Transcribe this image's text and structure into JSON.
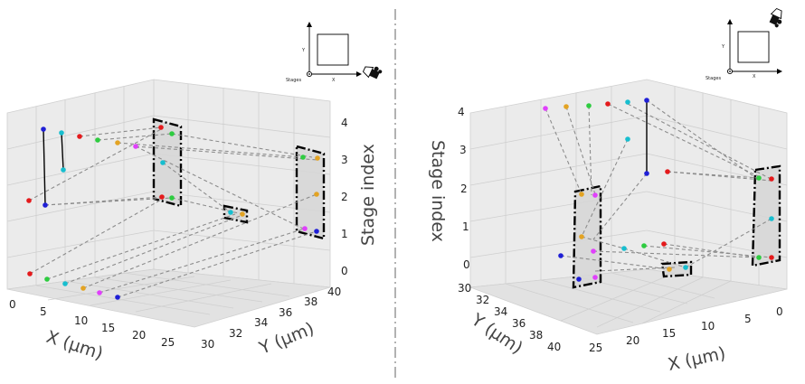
{
  "left_plot": {
    "x_ticks": [
      "0",
      "5",
      "10",
      "15",
      "20",
      "25"
    ],
    "y_ticks": [
      "30",
      "32",
      "34",
      "36",
      "38",
      "40"
    ],
    "z_ticks": [
      "0",
      "1",
      "2",
      "3",
      "4"
    ],
    "x_label": "X (µm)",
    "y_label": "Y (µm)",
    "z_label": "Stage index",
    "inset": {
      "stages_label": "Stages",
      "x_label": "X",
      "y_label": "Y"
    }
  },
  "right_plot": {
    "x_ticks": [
      "25",
      "20",
      "15",
      "10",
      "5",
      "0"
    ],
    "y_ticks": [
      "30",
      "32",
      "34",
      "36",
      "38",
      "40"
    ],
    "z_ticks": [
      "0",
      "1",
      "2",
      "3",
      "4"
    ],
    "x_label": "X (µm)",
    "y_label": "Y (µm)",
    "z_label": "Stage index",
    "inset": {
      "stages_label": "Stages",
      "x_label": "X",
      "y_label": "Y"
    }
  },
  "marker_colors": [
    "#e41a1c",
    "#2ecc40",
    "#17becf",
    "#e3a323",
    "#e040fb",
    "#1f1fd6"
  ],
  "divider_color": "#888888"
}
